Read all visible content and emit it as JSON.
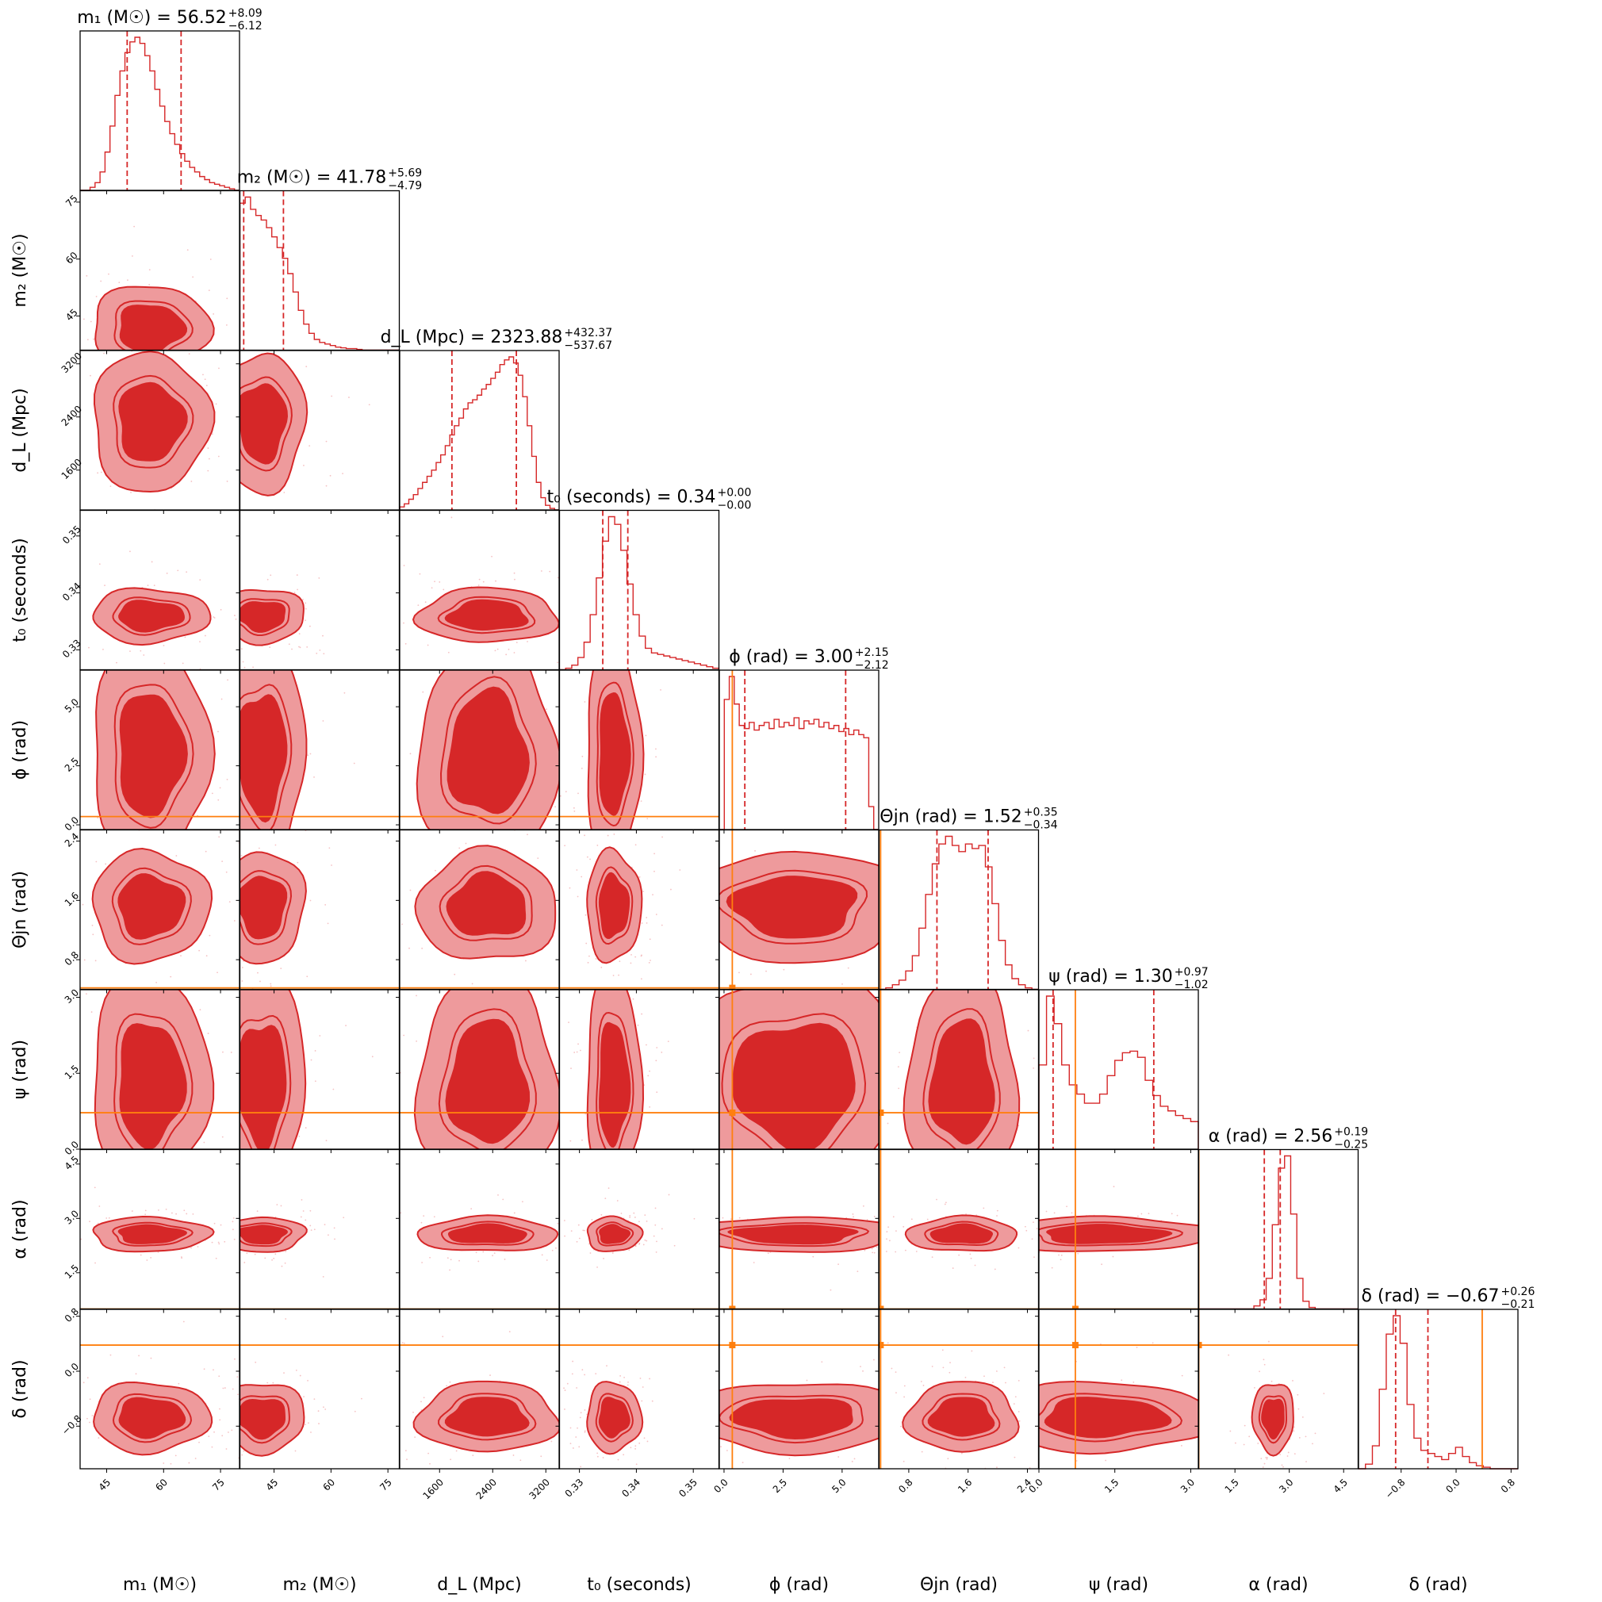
{
  "chart_data": {
    "type": "corner",
    "colors": {
      "posterior": "#d62728",
      "fill_outer": "#ee9a9c",
      "truth": "#ff7f0e"
    },
    "parameters": [
      {
        "id": "m1",
        "label": "m₁ (M☉)",
        "title": "m₁ (M☉) = 56.52",
        "err_plus": "+8.09",
        "err_minus": "−6.12",
        "range": [
          38,
          80
        ],
        "ticks": [
          45,
          60,
          75
        ],
        "tick_labels": [
          "45",
          "60",
          "75"
        ],
        "median": 56.52,
        "q_low": 50.4,
        "q_high": 64.61,
        "truth": null
      },
      {
        "id": "m2",
        "label": "m₂ (M☉)",
        "title": "m₂ (M☉) = 41.78",
        "err_plus": "+5.69",
        "err_minus": "−4.79",
        "range": [
          36,
          78
        ],
        "ticks": [
          45,
          60,
          75
        ],
        "tick_labels": [
          "45",
          "60",
          "75"
        ],
        "median": 41.78,
        "q_low": 37.0,
        "q_high": 47.47,
        "truth": null
      },
      {
        "id": "dL",
        "label": "d_L (Mpc)",
        "title": "d_L (Mpc) = 2323.88",
        "err_plus": "+432.37",
        "err_minus": "−537.67",
        "range": [
          1000,
          3400
        ],
        "ticks": [
          1600,
          2400,
          3200
        ],
        "tick_labels": [
          "1600",
          "2400",
          "3200"
        ],
        "median": 2323.88,
        "q_low": 1786.2,
        "q_high": 2756.3,
        "truth": null
      },
      {
        "id": "t0",
        "label": "t₀ (seconds)",
        "title": "t₀ (seconds) = 0.34",
        "err_plus": "+0.00",
        "err_minus": "−0.00",
        "range": [
          0.3265,
          0.3545
        ],
        "ticks": [
          0.33,
          0.34,
          0.35
        ],
        "tick_labels": [
          "0.33",
          "0.34",
          "0.35"
        ],
        "median": 0.336,
        "q_low": 0.3341,
        "q_high": 0.3385,
        "truth": null
      },
      {
        "id": "phi",
        "label": "ϕ (rad)",
        "title": "ϕ (rad) = 3.00",
        "err_plus": "+2.15",
        "err_minus": "−2.12",
        "range": [
          -0.2,
          6.55
        ],
        "ticks": [
          0.0,
          2.5,
          5.0
        ],
        "tick_labels": [
          "0.0",
          "2.5",
          "5.0"
        ],
        "median": 3.0,
        "q_low": 0.88,
        "q_high": 5.15,
        "truth": 0.35
      },
      {
        "id": "theta_jn",
        "label": "Θjn (rad)",
        "title": "Θjn (rad) = 1.52",
        "err_plus": "+0.35",
        "err_minus": "−0.34",
        "range": [
          0.4,
          2.55
        ],
        "ticks": [
          0.8,
          1.6,
          2.4
        ],
        "tick_labels": [
          "0.8",
          "1.6",
          "2.4"
        ],
        "median": 1.52,
        "q_low": 1.18,
        "q_high": 1.87,
        "truth": 0.42
      },
      {
        "id": "psi",
        "label": "ψ (rad)",
        "title": "ψ (rad) = 1.30",
        "err_plus": "+0.97",
        "err_minus": "−1.02",
        "range": [
          0.0,
          3.15
        ],
        "ticks": [
          0.0,
          1.5,
          3.0
        ],
        "tick_labels": [
          "0.0",
          "1.5",
          "3.0"
        ],
        "median": 1.3,
        "q_low": 0.28,
        "q_high": 2.27,
        "truth": 0.72
      },
      {
        "id": "alpha",
        "label": "α (rad)",
        "title": "α (rad) = 2.56",
        "err_plus": "+0.19",
        "err_minus": "−0.25",
        "range": [
          0.5,
          4.9
        ],
        "ticks": [
          1.5,
          3.0,
          4.5
        ],
        "tick_labels": [
          "1.5",
          "3.0",
          "4.5"
        ],
        "median": 2.56,
        "q_low": 2.31,
        "q_high": 2.75,
        "truth": 0.5
      },
      {
        "id": "delta",
        "label": "δ (rad)",
        "title": "δ (rad) = −0.67",
        "err_plus": "+0.26",
        "err_minus": "−0.21",
        "range": [
          -1.42,
          0.9
        ],
        "ticks": [
          -0.8,
          0.0,
          0.8
        ],
        "tick_labels": [
          "−0.8",
          "0.0",
          "0.8"
        ],
        "median": -0.67,
        "q_low": -0.88,
        "q_high": -0.41,
        "truth": 0.38
      }
    ],
    "histograms": {
      "m1": [
        0,
        0,
        0.02,
        0.05,
        0.12,
        0.25,
        0.42,
        0.62,
        0.78,
        0.9,
        0.97,
        1.0,
        0.96,
        0.88,
        0.78,
        0.66,
        0.55,
        0.45,
        0.37,
        0.3,
        0.24,
        0.19,
        0.15,
        0.12,
        0.09,
        0.07,
        0.05,
        0.04,
        0.03,
        0.02,
        0.01,
        0
      ],
      "m2": [
        0.96,
        1.0,
        0.92,
        0.88,
        0.85,
        0.8,
        0.74,
        0.67,
        0.6,
        0.5,
        0.38,
        0.26,
        0.17,
        0.11,
        0.07,
        0.05,
        0.04,
        0.03,
        0.02,
        0.015,
        0.01,
        0.01,
        0.005,
        0,
        0,
        0,
        0,
        0,
        0,
        0
      ],
      "dL": [
        0.02,
        0.04,
        0.07,
        0.1,
        0.14,
        0.18,
        0.22,
        0.26,
        0.31,
        0.36,
        0.42,
        0.49,
        0.55,
        0.6,
        0.66,
        0.7,
        0.72,
        0.75,
        0.79,
        0.82,
        0.86,
        0.9,
        0.95,
        0.98,
        1.0,
        0.96,
        0.88,
        0.74,
        0.55,
        0.35,
        0.18,
        0.08,
        0.03,
        0.01,
        0
      ],
      "t0": [
        0,
        0.01,
        0.03,
        0.08,
        0.18,
        0.36,
        0.6,
        0.84,
        1.0,
        0.95,
        0.78,
        0.56,
        0.36,
        0.22,
        0.14,
        0.11,
        0.1,
        0.09,
        0.08,
        0.07,
        0.06,
        0.05,
        0.04,
        0.03,
        0.02,
        0.01
      ],
      "phi": [
        0,
        0.85,
        1.0,
        0.82,
        0.68,
        0.66,
        0.7,
        0.65,
        0.68,
        0.7,
        0.66,
        0.72,
        0.67,
        0.7,
        0.68,
        0.73,
        0.66,
        0.71,
        0.69,
        0.72,
        0.67,
        0.7,
        0.66,
        0.68,
        0.64,
        0.66,
        0.62,
        0.65,
        0.62,
        0.6,
        0.15,
        0
      ],
      "theta_jn": [
        0,
        0.01,
        0.03,
        0.06,
        0.12,
        0.22,
        0.4,
        0.62,
        0.82,
        0.95,
        1.0,
        0.94,
        0.9,
        0.95,
        0.92,
        0.94,
        0.8,
        0.56,
        0.32,
        0.16,
        0.07,
        0.03,
        0.01,
        0
      ],
      "psi": [
        0.55,
        1.0,
        0.82,
        0.55,
        0.42,
        0.36,
        0.3,
        0.3,
        0.36,
        0.48,
        0.58,
        0.63,
        0.64,
        0.6,
        0.45,
        0.35,
        0.28,
        0.25,
        0.22,
        0.2,
        0.18
      ],
      "alpha": [
        0,
        0,
        0,
        0,
        0,
        0,
        0,
        0,
        0,
        0.02,
        0.06,
        0.2,
        0.55,
        0.92,
        1.0,
        0.62,
        0.2,
        0.05,
        0.01,
        0,
        0,
        0,
        0,
        0,
        0,
        0
      ],
      "delta": [
        0,
        0.03,
        0.15,
        0.52,
        0.88,
        1.0,
        0.82,
        0.42,
        0.2,
        0.12,
        0.1,
        0.08,
        0.06,
        0.1,
        0.14,
        0.08,
        0.04,
        0.02,
        0.01,
        0,
        0,
        0,
        0
      ]
    },
    "contour_levels": [
      "outer",
      "inner"
    ],
    "ylabels_rows": [
      "m₂ (M☉)",
      "d_L (Mpc)",
      "t₀ (seconds)",
      "ϕ (rad)",
      "Θjn (rad)",
      "ψ (rad)",
      "α (rad)",
      "δ (rad)"
    ],
    "xlabels_cols": [
      "m₁ (M☉)",
      "m₂ (M☉)",
      "d_L (Mpc)",
      "t₀ (seconds)",
      "ϕ (rad)",
      "Θjn (rad)",
      "ψ (rad)",
      "α (rad)",
      "δ (rad)"
    ]
  }
}
